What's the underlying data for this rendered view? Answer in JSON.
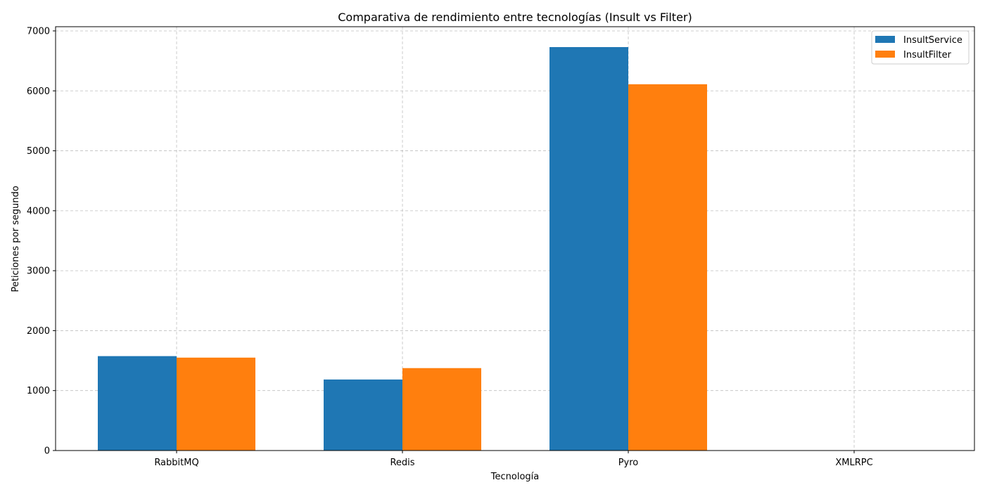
{
  "chart_data": {
    "type": "bar",
    "title": "Comparativa de rendimiento entre tecnologías (Insult vs Filter)",
    "xlabel": "Tecnología",
    "ylabel": "Peticiones por segundo",
    "categories": [
      "RabbitMQ",
      "Redis",
      "Pyro",
      "XMLRPC"
    ],
    "series": [
      {
        "name": "InsultService",
        "values": [
          1575,
          1185,
          6730,
          0
        ],
        "color": "#1f77b4"
      },
      {
        "name": "InsultFilter",
        "values": [
          1550,
          1375,
          6110,
          0
        ],
        "color": "#ff7f0e"
      }
    ],
    "ylim": [
      0,
      7070
    ],
    "yticks": [
      0,
      1000,
      2000,
      3000,
      4000,
      5000,
      6000,
      7000
    ],
    "grid": true,
    "legend_position": "top-right"
  }
}
